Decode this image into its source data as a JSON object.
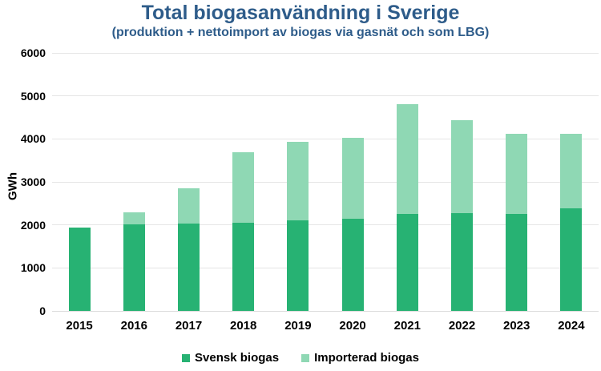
{
  "colors": {
    "title": "#2E5C8A",
    "grid": "#E5E5E5",
    "zero_line": "#DCDCDC",
    "axis_text": "#000000",
    "background": "#FFFFFF"
  },
  "chart_data": {
    "type": "bar",
    "stacked": true,
    "title": "Total biogasanvändning i Sverige",
    "subtitle": "(produktion + nettoimport av biogas via gasnät och som LBG)",
    "ylabel": "GWh",
    "xlabel": "",
    "categories": [
      "2015",
      "2016",
      "2017",
      "2018",
      "2019",
      "2020",
      "2021",
      "2022",
      "2023",
      "2024"
    ],
    "series": [
      {
        "name": "Svensk biogas",
        "color": "#27B273",
        "values": [
          1940,
          2020,
          2030,
          2050,
          2100,
          2150,
          2260,
          2280,
          2250,
          2390
        ]
      },
      {
        "name": "Importerad biogas",
        "color": "#8FD8B4",
        "values": [
          0,
          280,
          820,
          1640,
          1840,
          1870,
          2550,
          2160,
          1870,
          1730
        ]
      }
    ],
    "totals": [
      1940,
      2300,
      2850,
      3690,
      3940,
      4020,
      4810,
      4440,
      4120,
      4120
    ],
    "ylim": [
      0,
      6000
    ],
    "yticks": [
      0,
      1000,
      2000,
      3000,
      4000,
      5000,
      6000
    ],
    "grid": true,
    "legend_position": "bottom"
  }
}
